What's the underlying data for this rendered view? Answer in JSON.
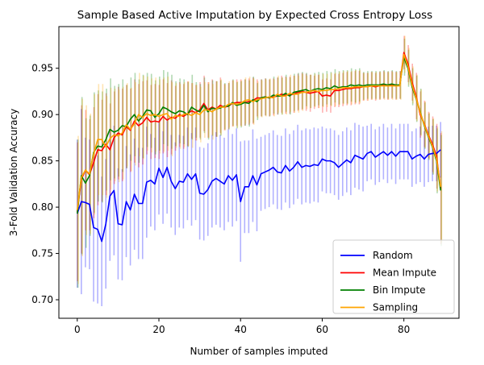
{
  "chart_data": {
    "type": "line",
    "title": "Sample Based Active Imputation by Expected Cross Entropy Loss",
    "xlabel": "Number of samples imputed",
    "ylabel": "3-Fold Validation Accuracy",
    "xlim": [
      -4.5,
      93.5
    ],
    "ylim": [
      0.68,
      0.995
    ],
    "x_ticks": [
      0,
      20,
      40,
      60,
      80
    ],
    "y_ticks": [
      0.7,
      0.75,
      0.8,
      0.85,
      0.9,
      0.95
    ],
    "y_tick_labels": [
      "0.70",
      "0.75",
      "0.80",
      "0.85",
      "0.90",
      "0.95"
    ],
    "grid": false,
    "legend_position": "lower-right",
    "x": [
      0,
      1,
      2,
      3,
      4,
      5,
      6,
      7,
      8,
      9,
      10,
      11,
      12,
      13,
      14,
      15,
      16,
      17,
      18,
      19,
      20,
      21,
      22,
      23,
      24,
      25,
      26,
      27,
      28,
      29,
      30,
      31,
      32,
      33,
      34,
      35,
      36,
      37,
      38,
      39,
      40,
      41,
      42,
      43,
      44,
      45,
      46,
      47,
      48,
      49,
      50,
      51,
      52,
      53,
      54,
      55,
      56,
      57,
      58,
      59,
      60,
      61,
      62,
      63,
      64,
      65,
      66,
      67,
      68,
      69,
      70,
      71,
      72,
      73,
      74,
      75,
      76,
      77,
      78,
      79,
      80,
      81,
      82,
      83,
      84,
      85,
      86,
      87,
      88,
      89
    ],
    "series": [
      {
        "name": "Random",
        "color": "#0000ff",
        "values": [
          0.793,
          0.806,
          0.805,
          0.803,
          0.778,
          0.776,
          0.763,
          0.782,
          0.812,
          0.818,
          0.782,
          0.781,
          0.806,
          0.797,
          0.814,
          0.804,
          0.804,
          0.827,
          0.829,
          0.825,
          0.842,
          0.832,
          0.843,
          0.828,
          0.82,
          0.828,
          0.827,
          0.836,
          0.83,
          0.836,
          0.815,
          0.814,
          0.819,
          0.828,
          0.831,
          0.828,
          0.825,
          0.834,
          0.829,
          0.835,
          0.806,
          0.822,
          0.822,
          0.834,
          0.824,
          0.836,
          0.838,
          0.84,
          0.843,
          0.838,
          0.837,
          0.845,
          0.839,
          0.843,
          0.849,
          0.843,
          0.845,
          0.844,
          0.846,
          0.845,
          0.852,
          0.85,
          0.85,
          0.848,
          0.843,
          0.847,
          0.851,
          0.848,
          0.856,
          0.854,
          0.852,
          0.858,
          0.86,
          0.854,
          0.857,
          0.86,
          0.856,
          0.86,
          0.855,
          0.86,
          0.86,
          0.86,
          0.852,
          0.855,
          0.857,
          0.852,
          0.857,
          0.858,
          0.858,
          0.862
        ],
        "err": [
          0.08,
          0.1,
          0.07,
          0.07,
          0.08,
          0.08,
          0.07,
          0.07,
          0.07,
          0.07,
          0.06,
          0.06,
          0.06,
          0.06,
          0.06,
          0.06,
          0.06,
          0.06,
          0.05,
          0.05,
          0.05,
          0.05,
          0.05,
          0.05,
          0.05,
          0.05,
          0.05,
          0.05,
          0.05,
          0.05,
          0.05,
          0.05,
          0.05,
          0.05,
          0.05,
          0.05,
          0.05,
          0.05,
          0.05,
          0.05,
          0.065,
          0.05,
          0.05,
          0.05,
          0.05,
          0.04,
          0.04,
          0.04,
          0.04,
          0.04,
          0.04,
          0.04,
          0.04,
          0.04,
          0.04,
          0.04,
          0.04,
          0.04,
          0.04,
          0.04,
          0.035,
          0.035,
          0.035,
          0.035,
          0.035,
          0.035,
          0.035,
          0.035,
          0.035,
          0.035,
          0.035,
          0.03,
          0.03,
          0.03,
          0.03,
          0.03,
          0.03,
          0.03,
          0.03,
          0.03,
          0.03,
          0.03,
          0.03,
          0.03,
          0.03,
          0.03,
          0.03,
          0.03,
          0.03,
          0.03
        ]
      },
      {
        "name": "Mean Impute",
        "color": "#ff0000",
        "values": [
          0.795,
          0.83,
          0.84,
          0.835,
          0.848,
          0.862,
          0.861,
          0.868,
          0.862,
          0.875,
          0.88,
          0.878,
          0.887,
          0.883,
          0.893,
          0.888,
          0.891,
          0.897,
          0.892,
          0.893,
          0.892,
          0.898,
          0.894,
          0.897,
          0.896,
          0.9,
          0.898,
          0.901,
          0.904,
          0.902,
          0.905,
          0.912,
          0.905,
          0.908,
          0.906,
          0.91,
          0.908,
          0.909,
          0.912,
          0.913,
          0.913,
          0.913,
          0.914,
          0.915,
          0.918,
          0.918,
          0.919,
          0.918,
          0.919,
          0.92,
          0.922,
          0.921,
          0.921,
          0.922,
          0.924,
          0.925,
          0.924,
          0.923,
          0.924,
          0.925,
          0.92,
          0.921,
          0.92,
          0.926,
          0.926,
          0.927,
          0.928,
          0.928,
          0.929,
          0.929,
          0.93,
          0.93,
          0.931,
          0.93,
          0.931,
          0.932,
          0.931,
          0.932,
          0.931,
          0.932,
          0.967,
          0.955,
          0.935,
          0.92,
          0.9,
          0.89,
          0.878,
          0.868,
          0.855,
          0.82
        ],
        "err": [
          0.075,
          0.08,
          0.065,
          0.06,
          0.06,
          0.06,
          0.055,
          0.055,
          0.05,
          0.05,
          0.05,
          0.05,
          0.045,
          0.045,
          0.045,
          0.045,
          0.045,
          0.04,
          0.04,
          0.04,
          0.04,
          0.04,
          0.04,
          0.04,
          0.035,
          0.035,
          0.035,
          0.035,
          0.03,
          0.03,
          0.03,
          0.03,
          0.03,
          0.03,
          0.03,
          0.03,
          0.025,
          0.025,
          0.025,
          0.025,
          0.025,
          0.025,
          0.025,
          0.025,
          0.02,
          0.02,
          0.02,
          0.02,
          0.02,
          0.02,
          0.02,
          0.02,
          0.02,
          0.02,
          0.02,
          0.02,
          0.02,
          0.02,
          0.018,
          0.018,
          0.018,
          0.018,
          0.018,
          0.018,
          0.018,
          0.018,
          0.018,
          0.018,
          0.018,
          0.018,
          0.015,
          0.015,
          0.015,
          0.015,
          0.015,
          0.015,
          0.015,
          0.015,
          0.015,
          0.015,
          0.018,
          0.02,
          0.02,
          0.025,
          0.025,
          0.025,
          0.025,
          0.03,
          0.035,
          0.06
        ]
      },
      {
        "name": "Bin Impute",
        "color": "#008000",
        "values": [
          0.793,
          0.834,
          0.826,
          0.834,
          0.859,
          0.866,
          0.865,
          0.873,
          0.884,
          0.881,
          0.883,
          0.888,
          0.887,
          0.895,
          0.9,
          0.893,
          0.898,
          0.905,
          0.904,
          0.897,
          0.901,
          0.908,
          0.906,
          0.903,
          0.901,
          0.904,
          0.903,
          0.9,
          0.908,
          0.905,
          0.903,
          0.91,
          0.903,
          0.907,
          0.906,
          0.907,
          0.909,
          0.909,
          0.913,
          0.91,
          0.911,
          0.913,
          0.912,
          0.916,
          0.914,
          0.918,
          0.919,
          0.918,
          0.921,
          0.92,
          0.92,
          0.923,
          0.92,
          0.924,
          0.925,
          0.926,
          0.927,
          0.925,
          0.927,
          0.928,
          0.927,
          0.929,
          0.928,
          0.931,
          0.929,
          0.93,
          0.93,
          0.932,
          0.931,
          0.932,
          0.931,
          0.932,
          0.932,
          0.932,
          0.932,
          0.933,
          0.932,
          0.933,
          0.932,
          0.932,
          0.962,
          0.95,
          0.93,
          0.917,
          0.903,
          0.888,
          0.876,
          0.865,
          0.85,
          0.818
        ],
        "err": [
          0.08,
          0.085,
          0.07,
          0.065,
          0.065,
          0.06,
          0.06,
          0.055,
          0.055,
          0.05,
          0.05,
          0.05,
          0.045,
          0.045,
          0.045,
          0.045,
          0.045,
          0.04,
          0.04,
          0.04,
          0.04,
          0.04,
          0.04,
          0.04,
          0.035,
          0.035,
          0.035,
          0.035,
          0.035,
          0.03,
          0.03,
          0.03,
          0.03,
          0.03,
          0.03,
          0.03,
          0.025,
          0.025,
          0.025,
          0.025,
          0.025,
          0.025,
          0.025,
          0.025,
          0.02,
          0.02,
          0.02,
          0.02,
          0.02,
          0.02,
          0.02,
          0.02,
          0.02,
          0.02,
          0.02,
          0.02,
          0.018,
          0.018,
          0.018,
          0.018,
          0.018,
          0.018,
          0.018,
          0.018,
          0.018,
          0.018,
          0.018,
          0.018,
          0.018,
          0.018,
          0.015,
          0.015,
          0.015,
          0.015,
          0.015,
          0.015,
          0.015,
          0.015,
          0.015,
          0.015,
          0.02,
          0.02,
          0.02,
          0.025,
          0.025,
          0.025,
          0.025,
          0.03,
          0.035,
          0.06
        ]
      },
      {
        "name": "Sampling",
        "color": "#ffa500",
        "values": [
          0.797,
          0.832,
          0.84,
          0.836,
          0.857,
          0.873,
          0.873,
          0.865,
          0.874,
          0.878,
          0.877,
          0.88,
          0.889,
          0.884,
          0.89,
          0.9,
          0.897,
          0.901,
          0.899,
          0.9,
          0.898,
          0.9,
          0.901,
          0.895,
          0.899,
          0.898,
          0.9,
          0.901,
          0.899,
          0.902,
          0.9,
          0.905,
          0.905,
          0.903,
          0.906,
          0.908,
          0.908,
          0.911,
          0.912,
          0.911,
          0.912,
          0.915,
          0.916,
          0.914,
          0.916,
          0.917,
          0.918,
          0.919,
          0.918,
          0.922,
          0.92,
          0.92,
          0.923,
          0.922,
          0.922,
          0.924,
          0.924,
          0.925,
          0.926,
          0.925,
          0.926,
          0.926,
          0.927,
          0.927,
          0.928,
          0.929,
          0.929,
          0.929,
          0.93,
          0.93,
          0.93,
          0.93,
          0.931,
          0.931,
          0.931,
          0.931,
          0.931,
          0.931,
          0.931,
          0.931,
          0.965,
          0.952,
          0.932,
          0.918,
          0.902,
          0.889,
          0.877,
          0.866,
          0.852,
          0.822
        ],
        "err": [
          0.08,
          0.085,
          0.07,
          0.065,
          0.065,
          0.06,
          0.06,
          0.055,
          0.055,
          0.05,
          0.05,
          0.05,
          0.045,
          0.045,
          0.045,
          0.045,
          0.045,
          0.04,
          0.04,
          0.04,
          0.04,
          0.04,
          0.04,
          0.04,
          0.035,
          0.035,
          0.035,
          0.035,
          0.035,
          0.03,
          0.03,
          0.03,
          0.03,
          0.03,
          0.03,
          0.03,
          0.025,
          0.025,
          0.025,
          0.025,
          0.025,
          0.025,
          0.025,
          0.025,
          0.02,
          0.02,
          0.02,
          0.02,
          0.02,
          0.02,
          0.02,
          0.02,
          0.02,
          0.02,
          0.02,
          0.02,
          0.018,
          0.018,
          0.018,
          0.018,
          0.018,
          0.018,
          0.018,
          0.018,
          0.018,
          0.018,
          0.018,
          0.018,
          0.018,
          0.018,
          0.015,
          0.015,
          0.015,
          0.015,
          0.015,
          0.015,
          0.015,
          0.015,
          0.015,
          0.015,
          0.02,
          0.02,
          0.02,
          0.025,
          0.025,
          0.025,
          0.025,
          0.03,
          0.035,
          0.06
        ]
      }
    ]
  }
}
